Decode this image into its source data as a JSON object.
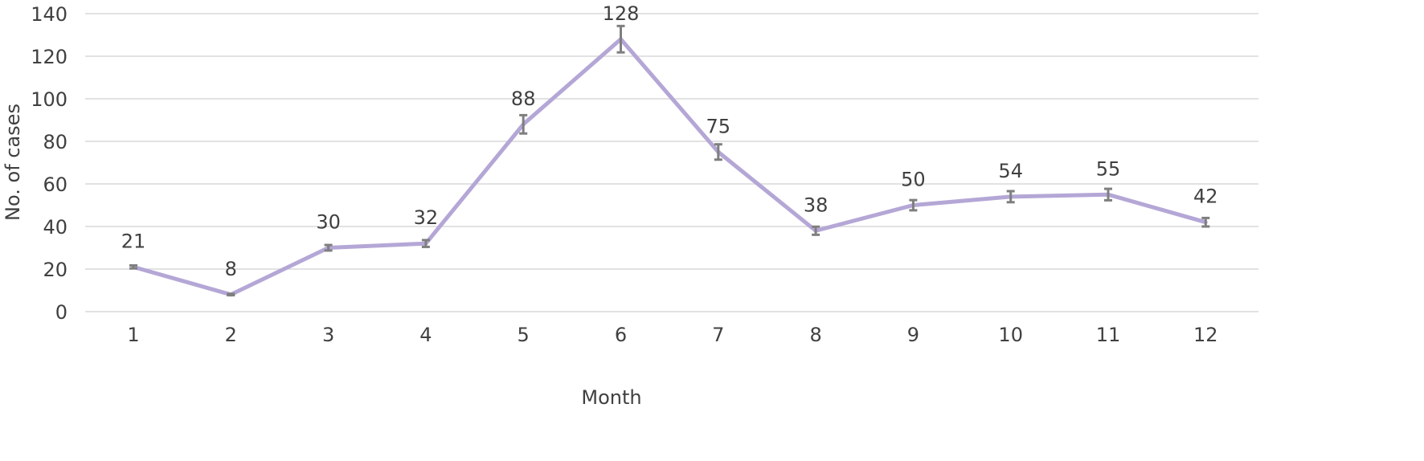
{
  "chart_data": {
    "type": "line",
    "title": "",
    "xlabel": "Month",
    "ylabel": "No. of cases",
    "ylim": [
      0,
      140
    ],
    "yticks": [
      0,
      20,
      40,
      60,
      80,
      100,
      120,
      140
    ],
    "grid": true,
    "legend": "none",
    "categories": [
      "1",
      "2",
      "3",
      "4",
      "5",
      "6",
      "7",
      "8",
      "9",
      "10",
      "11",
      "12"
    ],
    "series": [
      {
        "values": [
          21,
          8,
          30,
          32,
          88,
          128,
          75,
          38,
          50,
          54,
          55,
          42
        ],
        "error": [
          0.7,
          0.3,
          1.3,
          1.6,
          4.3,
          6.2,
          3.6,
          1.9,
          2.4,
          2.6,
          2.7,
          2.0
        ],
        "color": "#b4a7d6"
      }
    ],
    "data_labels": [
      "21",
      "8",
      "30",
      "32",
      "88",
      "128",
      "75",
      "38",
      "50",
      "54",
      "55",
      "42"
    ],
    "colors": {
      "line": "#b4a7d6",
      "error_bar": "#7f7f7f",
      "grid": "#d9d9d9",
      "text": "#404040"
    }
  }
}
